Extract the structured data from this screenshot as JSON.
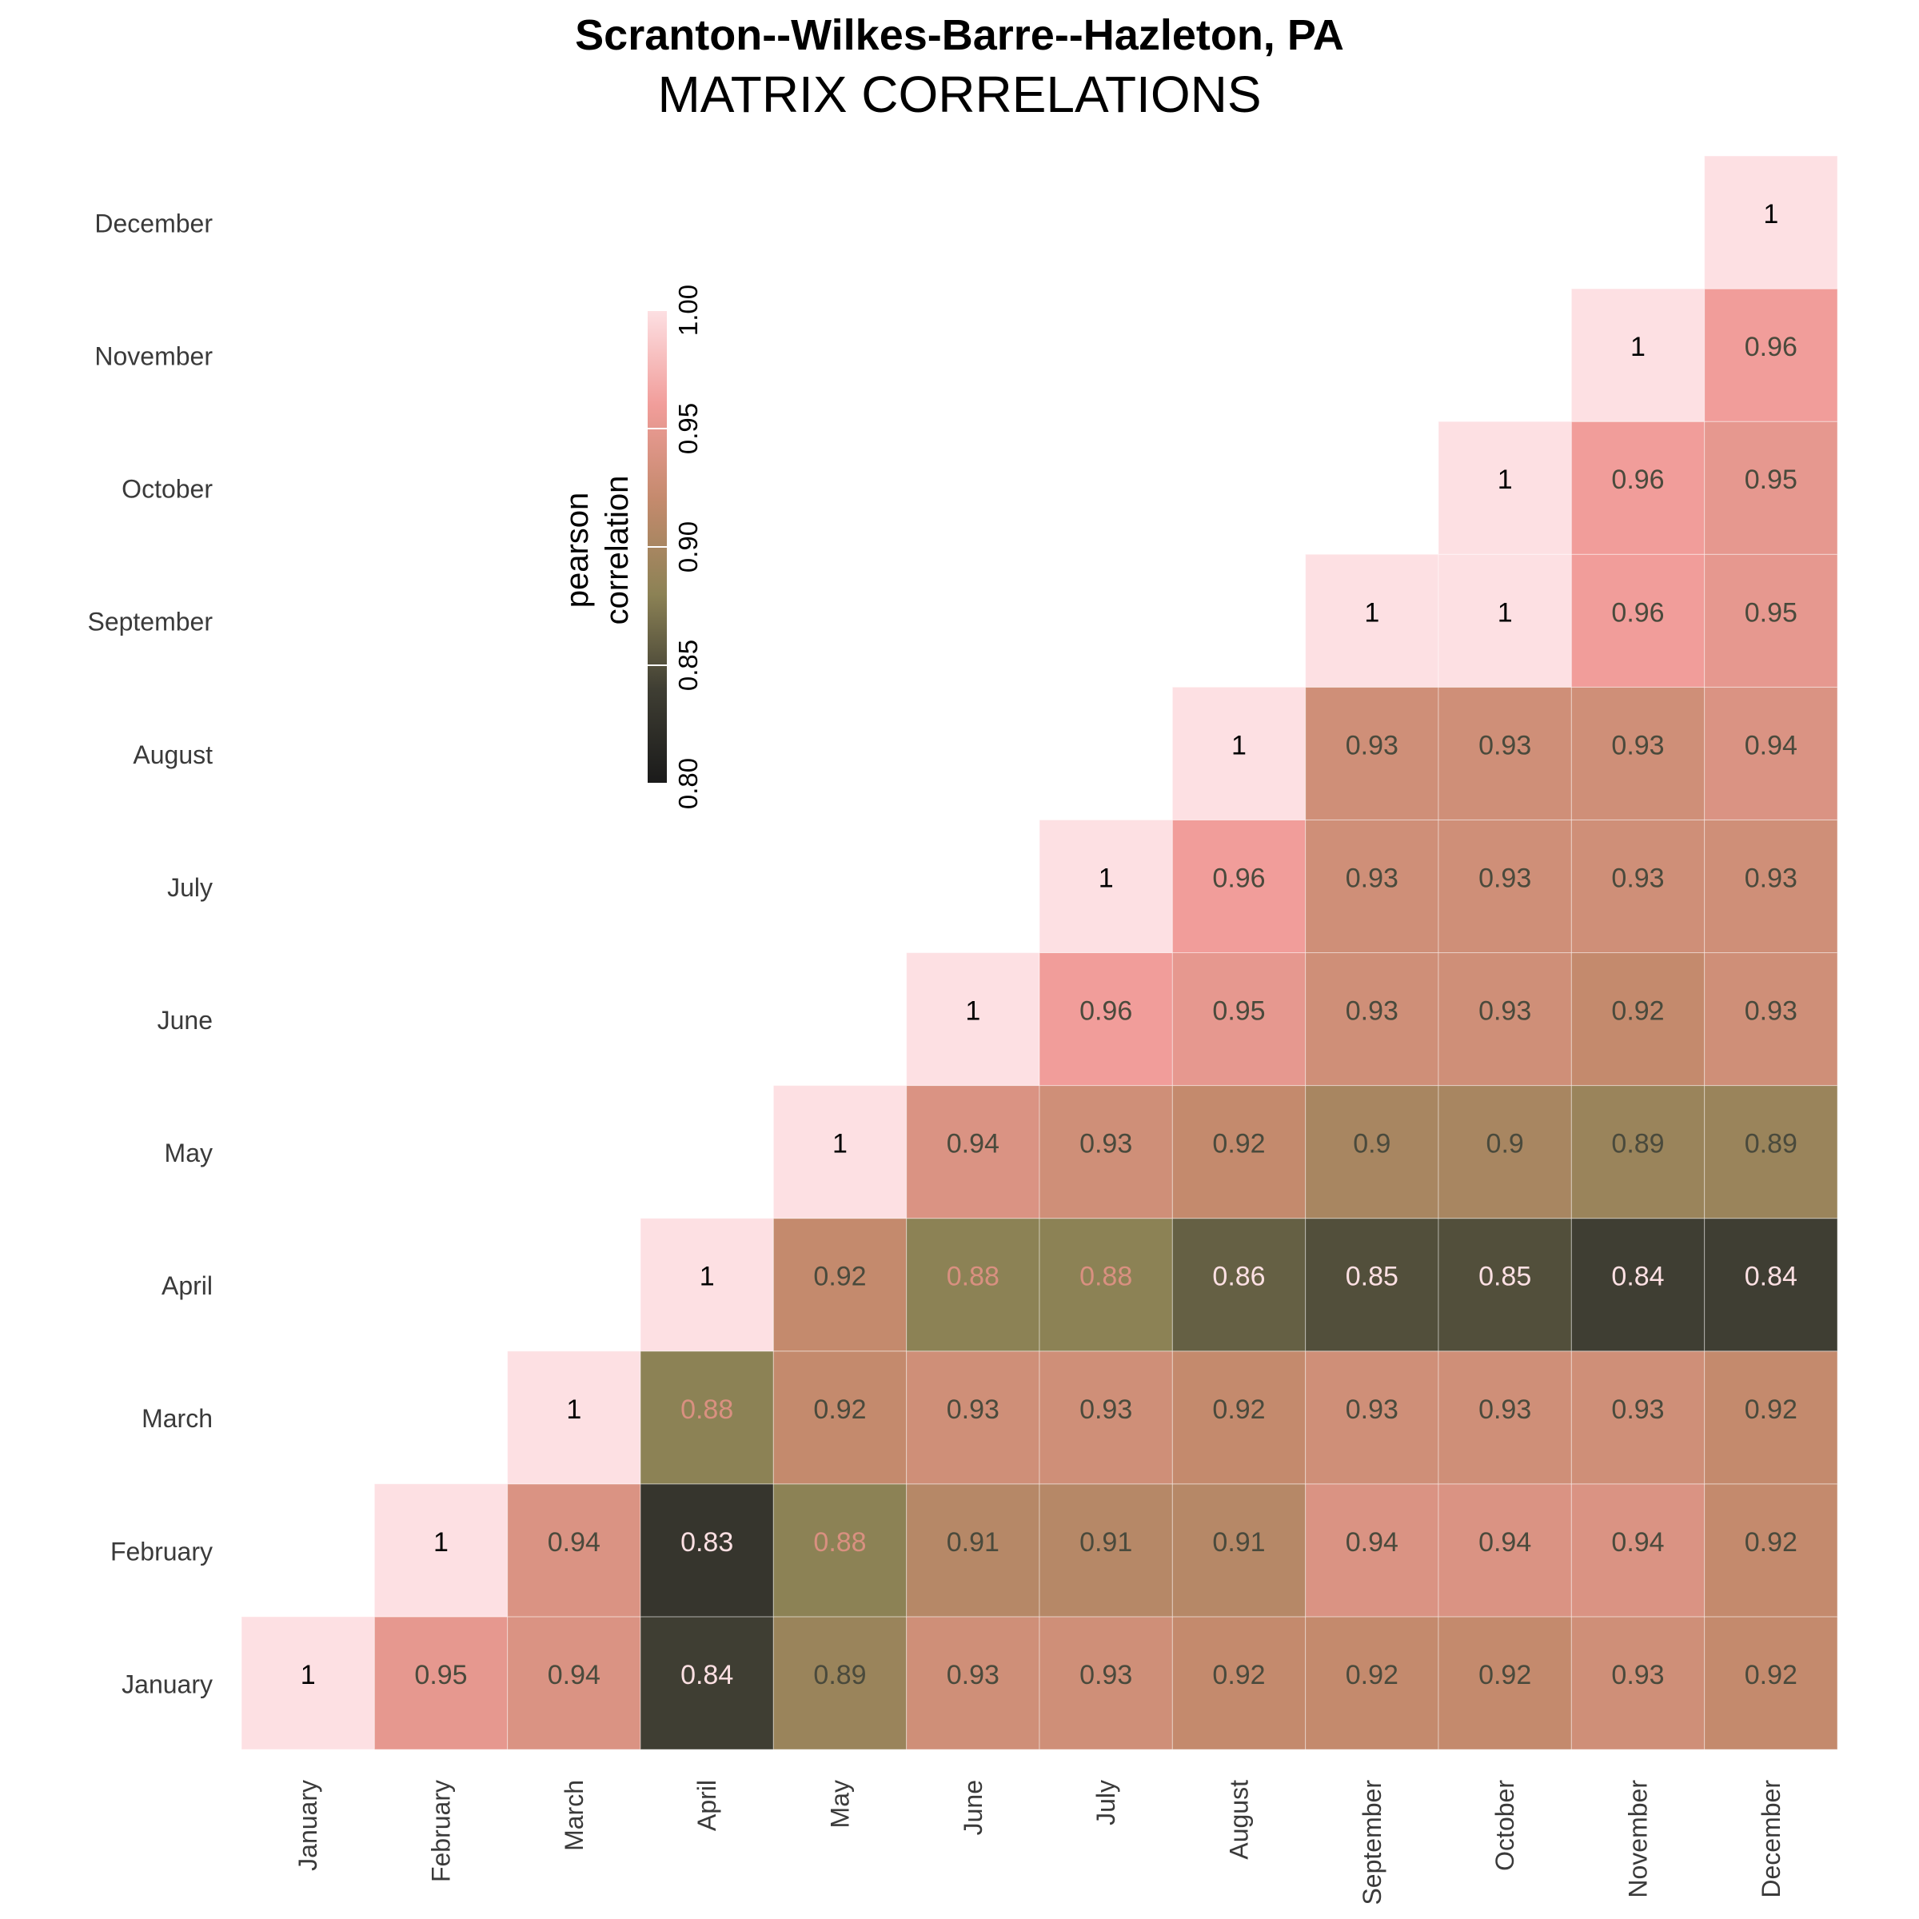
{
  "chart_data": {
    "type": "heatmap",
    "title": "Scranton--Wilkes-Barre--Hazleton, PA",
    "subtitle": "MATRIX CORRELATIONS",
    "categories": [
      "January",
      "February",
      "March",
      "April",
      "May",
      "June",
      "July",
      "August",
      "September",
      "October",
      "November",
      "December"
    ],
    "rows": [
      {
        "label": "January",
        "values": [
          1,
          0.95,
          0.94,
          0.84,
          0.89,
          0.93,
          0.93,
          0.92,
          0.92,
          0.92,
          0.93,
          0.92
        ]
      },
      {
        "label": "February",
        "values": [
          null,
          1,
          0.94,
          0.83,
          0.88,
          0.91,
          0.91,
          0.91,
          0.94,
          0.94,
          0.94,
          0.92
        ]
      },
      {
        "label": "March",
        "values": [
          null,
          null,
          1,
          0.88,
          0.92,
          0.93,
          0.93,
          0.92,
          0.93,
          0.93,
          0.93,
          0.92
        ]
      },
      {
        "label": "April",
        "values": [
          null,
          null,
          null,
          1,
          0.92,
          0.88,
          0.88,
          0.86,
          0.85,
          0.85,
          0.84,
          0.84
        ]
      },
      {
        "label": "May",
        "values": [
          null,
          null,
          null,
          null,
          1,
          0.94,
          0.93,
          0.92,
          0.9,
          0.9,
          0.89,
          0.89
        ]
      },
      {
        "label": "June",
        "values": [
          null,
          null,
          null,
          null,
          null,
          1,
          0.96,
          0.95,
          0.93,
          0.93,
          0.92,
          0.93
        ]
      },
      {
        "label": "July",
        "values": [
          null,
          null,
          null,
          null,
          null,
          null,
          1,
          0.96,
          0.93,
          0.93,
          0.93,
          0.93
        ]
      },
      {
        "label": "August",
        "values": [
          null,
          null,
          null,
          null,
          null,
          null,
          null,
          1,
          0.93,
          0.93,
          0.93,
          0.94
        ]
      },
      {
        "label": "September",
        "values": [
          null,
          null,
          null,
          null,
          null,
          null,
          null,
          null,
          1,
          1,
          0.96,
          0.95
        ]
      },
      {
        "label": "October",
        "values": [
          null,
          null,
          null,
          null,
          null,
          null,
          null,
          null,
          null,
          1,
          0.96,
          0.95
        ]
      },
      {
        "label": "November",
        "values": [
          null,
          null,
          null,
          null,
          null,
          null,
          null,
          null,
          null,
          null,
          1,
          0.96
        ]
      },
      {
        "label": "December",
        "values": [
          null,
          null,
          null,
          null,
          null,
          null,
          null,
          null,
          null,
          null,
          null,
          1
        ]
      }
    ],
    "legend": {
      "title_line1": "pearson",
      "title_line2": "correlation",
      "range": [
        0.8,
        1.0
      ],
      "ticks": [
        "0.80",
        "0.85",
        "0.90",
        "0.95",
        "1.00"
      ],
      "colors": [
        "#1a1a1a",
        "#3f3e33",
        "#8c8255",
        "#c48a6d",
        "#f19d9a",
        "#fde0e3"
      ],
      "placement": "upper-left"
    }
  }
}
